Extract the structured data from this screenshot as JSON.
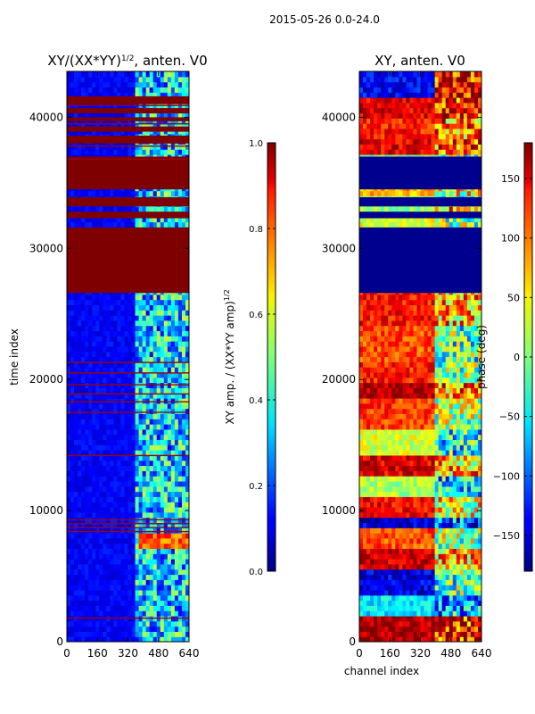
{
  "figure": {
    "suptitle": "2015-05-26 0.0-24.0"
  },
  "chart_data": [
    {
      "type": "heatmap",
      "title": "XY/(XX*YY)",
      "title_superscript": "1/2",
      "title_suffix": ", anten. V0",
      "xlabel": "",
      "ylabel": "time index",
      "xlim": [
        0,
        640
      ],
      "ylim": [
        0,
        43500
      ],
      "xticks": [
        0,
        160,
        320,
        480,
        640
      ],
      "yticks": [
        0,
        10000,
        20000,
        30000,
        40000
      ],
      "colorbar": {
        "label": "XY amp. / (XX*YY amp)",
        "label_superscript": "1/2",
        "range": [
          0.0,
          1.0
        ],
        "ticks": [
          "0.0",
          "0.2",
          "0.4",
          "0.6",
          "0.8",
          "1.0"
        ],
        "colormap": "jet"
      },
      "saturated_bands": [
        [
          26600,
          31600
        ],
        [
          32300,
          32800
        ],
        [
          33200,
          33900
        ],
        [
          34500,
          37000
        ],
        [
          38000,
          38600
        ],
        [
          38900,
          39300
        ],
        [
          39700,
          40000
        ],
        [
          40300,
          40700
        ],
        [
          41000,
          41600
        ]
      ],
      "thin_lines": [
        1800,
        8400,
        8700,
        9000,
        9300,
        14200,
        17500,
        18300,
        18900,
        19600,
        20500,
        21300,
        36800,
        37800,
        39500,
        40900
      ],
      "bright_region": {
        "x_range": [
          360,
          640
        ],
        "t_range": [
          7000,
          8000
        ],
        "level": 0.85
      }
    },
    {
      "type": "heatmap",
      "title": "XY, anten. V0",
      "xlabel": "channel index",
      "ylabel": "",
      "xlim": [
        0,
        640
      ],
      "ylim": [
        0,
        43500
      ],
      "xticks": [
        0,
        160,
        320,
        480,
        640
      ],
      "yticks": [
        0,
        10000,
        20000,
        30000,
        40000
      ],
      "colorbar": {
        "label": "phase (deg)",
        "range": [
          -180,
          180
        ],
        "ticks": [
          "−150",
          "−100",
          "−50",
          "0",
          "50",
          "100",
          "150"
        ],
        "colormap": "jet"
      },
      "saturated_bands": [
        [
          26600,
          31600
        ],
        [
          32300,
          32800
        ],
        [
          33200,
          33900
        ],
        [
          34500,
          37000
        ]
      ],
      "split_channel": 380,
      "phase_bands": [
        {
          "t": [
            0,
            1800
          ],
          "left": 0.95,
          "right": 0.85
        },
        {
          "t": [
            1800,
            3200
          ],
          "left": 0.35,
          "right": 0.3
        },
        {
          "t": [
            3200,
            5200
          ],
          "left": 0.1,
          "right": 0.45
        },
        {
          "t": [
            5200,
            7000
          ],
          "left": 0.92,
          "right": 0.7
        },
        {
          "t": [
            7000,
            8400
          ],
          "left": 0.8,
          "right": 0.5
        },
        {
          "t": [
            8400,
            9300
          ],
          "left": 0.08,
          "right": 0.2
        },
        {
          "t": [
            9300,
            11000
          ],
          "left": 0.88,
          "right": 0.6
        },
        {
          "t": [
            11000,
            12400
          ],
          "left": 0.55,
          "right": 0.35
        },
        {
          "t": [
            12400,
            14200
          ],
          "left": 0.9,
          "right": 0.7
        },
        {
          "t": [
            14200,
            16000
          ],
          "left": 0.58,
          "right": 0.4
        },
        {
          "t": [
            16000,
            18300
          ],
          "left": 0.82,
          "right": 0.55
        },
        {
          "t": [
            18300,
            19600
          ],
          "left": 0.96,
          "right": 0.75
        },
        {
          "t": [
            19600,
            21300
          ],
          "left": 0.85,
          "right": 0.5
        },
        {
          "t": [
            21300,
            24000
          ],
          "left": 0.8,
          "right": 0.45
        },
        {
          "t": [
            24000,
            26600
          ],
          "left": 0.86,
          "right": 0.7
        },
        {
          "t": [
            31600,
            32300
          ],
          "left": 0.6,
          "right": 0.5
        },
        {
          "t": [
            32800,
            33200
          ],
          "left": 0.5,
          "right": 0.7
        },
        {
          "t": [
            33900,
            34500
          ],
          "left": 0.7,
          "right": 0.6
        },
        {
          "t": [
            37000,
            38200
          ],
          "left": 0.9,
          "right": 0.8
        },
        {
          "t": [
            38200,
            39600
          ],
          "left": 0.85,
          "right": 0.75
        },
        {
          "t": [
            39600,
            41200
          ],
          "left": 0.9,
          "right": 0.85
        },
        {
          "t": [
            41200,
            43500
          ],
          "left": 0.12,
          "right": 0.9
        }
      ]
    }
  ]
}
